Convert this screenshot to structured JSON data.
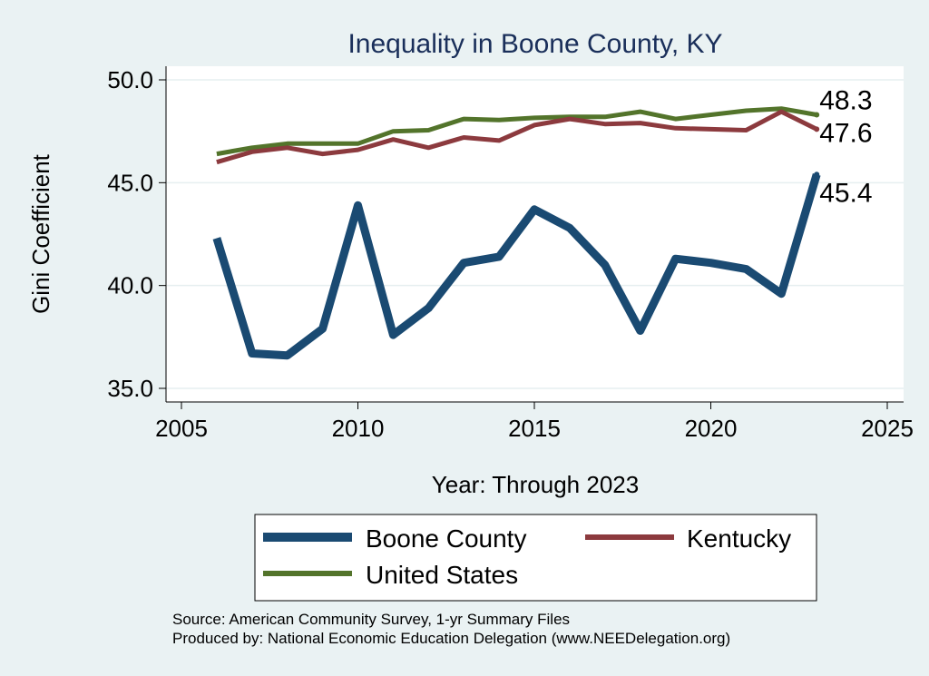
{
  "chart_data": {
    "type": "line",
    "title": "Inequality in Boone County, KY",
    "xlabel": "Year: Through 2023",
    "ylabel": "Gini Coefficient",
    "xlim": [
      2005,
      2025
    ],
    "ylim": [
      35,
      50
    ],
    "xticks": [
      2005,
      2010,
      2015,
      2020,
      2025
    ],
    "yticks": [
      35,
      40,
      45,
      50
    ],
    "yticks_labels": [
      "35.0",
      "40.0",
      "45.0",
      "50.0"
    ],
    "grid": true,
    "legend_position": "bottom",
    "series": [
      {
        "name": "Boone County",
        "color": "#1a4a72",
        "x": [
          2006,
          2007,
          2008,
          2009,
          2010,
          2011,
          2012,
          2013,
          2014,
          2015,
          2016,
          2017,
          2018,
          2019,
          2020,
          2021,
          2022,
          2023
        ],
        "values": [
          42.3,
          36.7,
          36.6,
          37.9,
          43.9,
          37.6,
          38.9,
          41.1,
          41.4,
          43.7,
          42.8,
          41.0,
          37.8,
          41.3,
          41.1,
          40.8,
          39.6,
          45.4
        ],
        "end_label": "45.4"
      },
      {
        "name": "Kentucky",
        "color": "#8c3a3e",
        "x": [
          2006,
          2007,
          2008,
          2009,
          2010,
          2011,
          2012,
          2013,
          2014,
          2015,
          2016,
          2017,
          2018,
          2019,
          2020,
          2021,
          2022,
          2023
        ],
        "values": [
          46.0,
          46.5,
          46.7,
          46.4,
          46.6,
          47.1,
          46.7,
          47.2,
          47.05,
          47.8,
          48.1,
          47.85,
          47.9,
          47.65,
          47.6,
          47.55,
          48.45,
          47.6
        ],
        "end_label": "47.6"
      },
      {
        "name": "United States",
        "color": "#53742b",
        "x": [
          2006,
          2007,
          2008,
          2009,
          2010,
          2011,
          2012,
          2013,
          2014,
          2015,
          2016,
          2017,
          2018,
          2019,
          2020,
          2021,
          2022,
          2023
        ],
        "values": [
          46.4,
          46.7,
          46.9,
          46.9,
          46.9,
          47.5,
          47.55,
          48.1,
          48.05,
          48.15,
          48.2,
          48.2,
          48.45,
          48.1,
          48.3,
          48.5,
          48.6,
          48.3
        ],
        "end_label": "48.3"
      }
    ],
    "source_lines": [
      "Source: American Community Survey, 1-yr Summary Files",
      "Produced by: National Economic Education Delegation (www.NEEDelegation.org)"
    ]
  }
}
